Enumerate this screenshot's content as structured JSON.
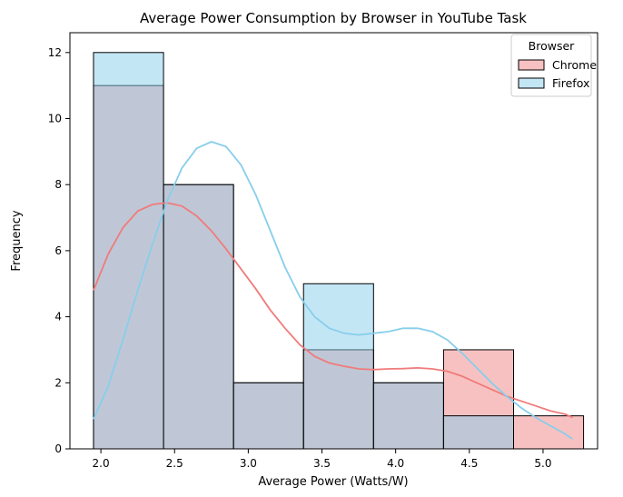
{
  "chart_data": {
    "type": "histogram",
    "title": "Average Power Consumption by Browser in YouTube Task",
    "xlabel": "Average Power (Watts/W)",
    "ylabel": "Frequency",
    "xlim": [
      1.79,
      5.37
    ],
    "ylim": [
      0,
      12.6
    ],
    "xticks": [
      2.0,
      2.5,
      3.0,
      3.5,
      4.0,
      4.5,
      5.0
    ],
    "xtick_labels": [
      "2.0",
      "2.5",
      "3.0",
      "3.5",
      "4.0",
      "4.5",
      "5.0"
    ],
    "yticks": [
      0,
      2,
      4,
      6,
      8,
      10,
      12
    ],
    "ytick_labels": [
      "0",
      "2",
      "4",
      "6",
      "8",
      "10",
      "12"
    ],
    "bin_edges": [
      1.95,
      2.425,
      2.9,
      3.375,
      3.85,
      4.325,
      4.8,
      5.275
    ],
    "grid": false,
    "legend": {
      "title": "Browser",
      "placement": "top-right"
    },
    "series": [
      {
        "name": "Chrome",
        "bar_color": "#f4a6a6",
        "kde_color": "#f07b7b",
        "counts": [
          11,
          8,
          2,
          3,
          2,
          3,
          1
        ],
        "kde": [
          [
            1.95,
            4.8
          ],
          [
            2.05,
            5.9
          ],
          [
            2.15,
            6.7
          ],
          [
            2.25,
            7.2
          ],
          [
            2.35,
            7.4
          ],
          [
            2.45,
            7.45
          ],
          [
            2.55,
            7.35
          ],
          [
            2.65,
            7.05
          ],
          [
            2.75,
            6.6
          ],
          [
            2.85,
            6.05
          ],
          [
            2.95,
            5.45
          ],
          [
            3.05,
            4.85
          ],
          [
            3.15,
            4.2
          ],
          [
            3.25,
            3.65
          ],
          [
            3.35,
            3.15
          ],
          [
            3.45,
            2.8
          ],
          [
            3.55,
            2.6
          ],
          [
            3.65,
            2.5
          ],
          [
            3.75,
            2.42
          ],
          [
            3.85,
            2.4
          ],
          [
            3.95,
            2.42
          ],
          [
            4.05,
            2.43
          ],
          [
            4.15,
            2.45
          ],
          [
            4.25,
            2.42
          ],
          [
            4.35,
            2.35
          ],
          [
            4.45,
            2.2
          ],
          [
            4.55,
            2.0
          ],
          [
            4.65,
            1.8
          ],
          [
            4.75,
            1.6
          ],
          [
            4.85,
            1.45
          ],
          [
            4.95,
            1.3
          ],
          [
            5.05,
            1.15
          ],
          [
            5.15,
            1.05
          ],
          [
            5.2,
            0.95
          ]
        ]
      },
      {
        "name": "Firefox",
        "bar_color": "#87ceeb",
        "kde_color": "#87ceeb",
        "counts": [
          12,
          8,
          2,
          5,
          2,
          1,
          0
        ],
        "kde": [
          [
            1.95,
            0.9
          ],
          [
            2.05,
            1.9
          ],
          [
            2.15,
            3.3
          ],
          [
            2.25,
            4.8
          ],
          [
            2.35,
            6.2
          ],
          [
            2.45,
            7.5
          ],
          [
            2.55,
            8.5
          ],
          [
            2.65,
            9.1
          ],
          [
            2.75,
            9.3
          ],
          [
            2.85,
            9.15
          ],
          [
            2.95,
            8.6
          ],
          [
            3.05,
            7.7
          ],
          [
            3.15,
            6.6
          ],
          [
            3.25,
            5.5
          ],
          [
            3.35,
            4.6
          ],
          [
            3.45,
            4.0
          ],
          [
            3.55,
            3.65
          ],
          [
            3.65,
            3.5
          ],
          [
            3.75,
            3.45
          ],
          [
            3.85,
            3.5
          ],
          [
            3.95,
            3.55
          ],
          [
            4.05,
            3.65
          ],
          [
            4.15,
            3.65
          ],
          [
            4.25,
            3.55
          ],
          [
            4.35,
            3.3
          ],
          [
            4.45,
            2.9
          ],
          [
            4.55,
            2.45
          ],
          [
            4.65,
            2.0
          ],
          [
            4.75,
            1.6
          ],
          [
            4.85,
            1.25
          ],
          [
            4.95,
            0.95
          ],
          [
            5.05,
            0.7
          ],
          [
            5.15,
            0.45
          ],
          [
            5.2,
            0.3
          ]
        ]
      }
    ]
  }
}
